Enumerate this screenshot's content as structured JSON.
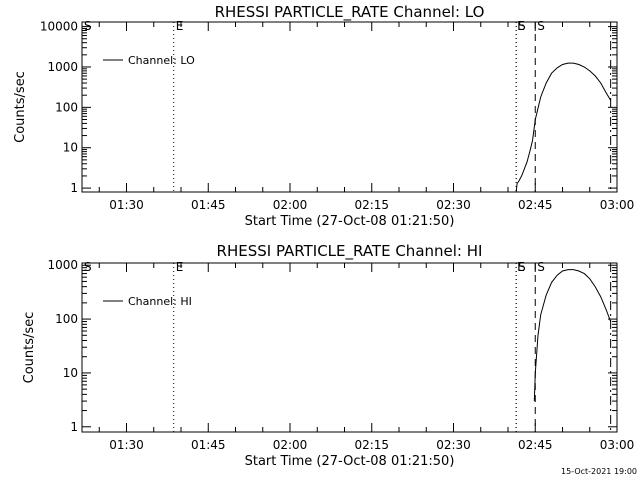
{
  "timestamp": "15-Oct-2021 19:00",
  "chart_data": [
    {
      "type": "line",
      "title": "RHESSI PARTICLE_RATE Channel: LO",
      "xlabel": "Start Time (27-Oct-08 01:21:50)",
      "ylabel": "Counts/sec",
      "yscale": "log",
      "xlim": [
        "01:21:50",
        "03:00:00"
      ],
      "ylim": [
        0.8,
        13000
      ],
      "x_ticks": [
        "01:30",
        "01:45",
        "02:00",
        "02:15",
        "02:30",
        "02:45",
        "03:00"
      ],
      "y_ticks": [
        "1",
        "10",
        "100",
        "1000",
        "10000"
      ],
      "legend": "Channel: LO",
      "legend_position": "top-left",
      "series": [
        {
          "name": "Channel: LO",
          "x": [
            "02:41:30",
            "02:41:40",
            "02:42:00",
            "02:42:30",
            "02:43:00",
            "02:43:30",
            "02:44:00",
            "02:44:30",
            "02:45:00",
            "02:46:00",
            "02:47:00",
            "02:48:00",
            "02:49:00",
            "02:50:00",
            "02:51:00",
            "02:52:00",
            "02:53:00",
            "02:54:00",
            "02:55:00",
            "02:56:00",
            "02:57:00",
            "02:58:00",
            "02:58:50"
          ],
          "y": [
            0.8,
            1.3,
            1.5,
            2.0,
            3.0,
            4.5,
            8,
            15,
            50,
            180,
            400,
            700,
            950,
            1150,
            1250,
            1250,
            1150,
            1000,
            800,
            600,
            400,
            230,
            150
          ]
        }
      ],
      "markers": [
        {
          "label": "S",
          "time": "01:21:50",
          "style": "dotted"
        },
        {
          "label": "E",
          "time": "01:38:40",
          "style": "dotted"
        },
        {
          "label": "S",
          "time": "02:41:30",
          "style": "dotted"
        },
        {
          "label": "E",
          "time": "02:41:30",
          "style": "dotted"
        },
        {
          "label": "S",
          "time": "02:45:00",
          "style": "dashed"
        },
        {
          "label": "",
          "time": "02:58:50",
          "style": "dash-dot"
        }
      ]
    },
    {
      "type": "line",
      "title": "RHESSI PARTICLE_RATE Channel: HI",
      "xlabel": "Start Time (27-Oct-08 01:21:50)",
      "ylabel": "Counts/sec",
      "yscale": "log",
      "xlim": [
        "01:21:50",
        "03:00:00"
      ],
      "ylim": [
        0.8,
        1100
      ],
      "x_ticks": [
        "01:30",
        "01:45",
        "02:00",
        "02:15",
        "02:30",
        "02:45",
        "03:00"
      ],
      "y_ticks": [
        "1",
        "10",
        "100",
        "1000"
      ],
      "legend": "Channel: HI",
      "legend_position": "top-left",
      "series": [
        {
          "name": "Channel: HI",
          "x": [
            "02:44:50",
            "02:45:00",
            "02:45:30",
            "02:46:00",
            "02:47:00",
            "02:48:00",
            "02:49:00",
            "02:50:00",
            "02:51:00",
            "02:52:00",
            "02:53:00",
            "02:54:00",
            "02:55:00",
            "02:56:00",
            "02:57:00",
            "02:58:00",
            "02:58:50"
          ],
          "y": [
            3,
            10,
            50,
            120,
            280,
            480,
            650,
            780,
            830,
            830,
            780,
            700,
            560,
            400,
            260,
            150,
            90
          ]
        }
      ],
      "markers": [
        {
          "label": "S",
          "time": "01:21:50",
          "style": "dotted"
        },
        {
          "label": "E",
          "time": "01:38:40",
          "style": "dotted"
        },
        {
          "label": "S",
          "time": "02:41:30",
          "style": "dotted"
        },
        {
          "label": "E",
          "time": "02:41:30",
          "style": "dotted"
        },
        {
          "label": "S",
          "time": "02:45:00",
          "style": "dashed"
        },
        {
          "label": "",
          "time": "02:58:50",
          "style": "dash-dot"
        }
      ]
    }
  ]
}
